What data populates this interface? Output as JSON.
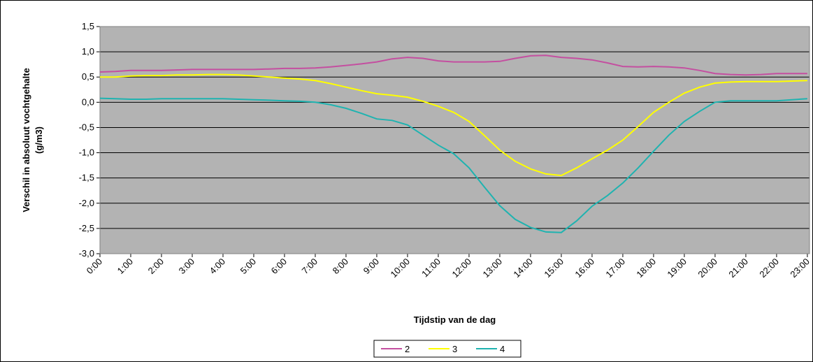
{
  "chart_data": {
    "type": "line",
    "ylabel": [
      "Verschil in absoluut vochtgehalte",
      "(g/m3)"
    ],
    "xlabel": "Tijdstip van de dag",
    "x": [
      0,
      0.5,
      1,
      1.5,
      2,
      2.5,
      3,
      3.5,
      4,
      4.5,
      5,
      5.5,
      6,
      6.5,
      7,
      7.5,
      8,
      8.5,
      9,
      9.5,
      10,
      10.5,
      11,
      11.5,
      12,
      12.5,
      13,
      13.5,
      14,
      14.5,
      15,
      15.5,
      16,
      16.5,
      17,
      17.5,
      18,
      18.5,
      19,
      19.5,
      20,
      20.5,
      21,
      21.5,
      22,
      22.5,
      23
    ],
    "series": [
      {
        "name": "2",
        "color": "#c44fa0",
        "values": [
          0.6,
          0.61,
          0.63,
          0.63,
          0.63,
          0.64,
          0.65,
          0.65,
          0.65,
          0.65,
          0.65,
          0.66,
          0.67,
          0.67,
          0.68,
          0.7,
          0.73,
          0.76,
          0.8,
          0.86,
          0.89,
          0.87,
          0.82,
          0.8,
          0.8,
          0.8,
          0.81,
          0.87,
          0.92,
          0.93,
          0.89,
          0.87,
          0.84,
          0.78,
          0.71,
          0.7,
          0.71,
          0.7,
          0.68,
          0.63,
          0.57,
          0.55,
          0.54,
          0.55,
          0.57,
          0.57,
          0.57
        ]
      },
      {
        "name": "3",
        "color": "#ffff00",
        "values": [
          0.5,
          0.5,
          0.52,
          0.53,
          0.53,
          0.54,
          0.54,
          0.55,
          0.55,
          0.54,
          0.52,
          0.5,
          0.48,
          0.46,
          0.43,
          0.37,
          0.3,
          0.23,
          0.17,
          0.14,
          0.1,
          0.02,
          -0.08,
          -0.2,
          -0.38,
          -0.66,
          -0.95,
          -1.17,
          -1.32,
          -1.42,
          -1.45,
          -1.3,
          -1.12,
          -0.95,
          -0.75,
          -0.48,
          -0.2,
          0.0,
          0.18,
          0.3,
          0.38,
          0.4,
          0.41,
          0.41,
          0.41,
          0.42,
          0.43
        ]
      },
      {
        "name": "4",
        "color": "#1fb3b0",
        "values": [
          0.08,
          0.07,
          0.06,
          0.06,
          0.07,
          0.07,
          0.07,
          0.07,
          0.07,
          0.06,
          0.05,
          0.04,
          0.03,
          0.02,
          0.0,
          -0.05,
          -0.12,
          -0.22,
          -0.33,
          -0.36,
          -0.45,
          -0.65,
          -0.85,
          -1.02,
          -1.3,
          -1.68,
          -2.05,
          -2.32,
          -2.48,
          -2.57,
          -2.58,
          -2.35,
          -2.06,
          -1.85,
          -1.6,
          -1.3,
          -0.97,
          -0.65,
          -0.38,
          -0.18,
          0.0,
          0.03,
          0.03,
          0.03,
          0.03,
          0.05,
          0.07
        ]
      }
    ],
    "xlim": [
      0,
      23.07
    ],
    "xticks": [
      {
        "value": 0,
        "label": "0:00"
      },
      {
        "value": 1,
        "label": "1:00"
      },
      {
        "value": 2,
        "label": "2:00"
      },
      {
        "value": 3,
        "label": "3:00"
      },
      {
        "value": 4,
        "label": "4:00"
      },
      {
        "value": 5,
        "label": "5:00"
      },
      {
        "value": 6,
        "label": "6:00"
      },
      {
        "value": 7,
        "label": "7:00"
      },
      {
        "value": 8,
        "label": "8:00"
      },
      {
        "value": 9,
        "label": "9:00"
      },
      {
        "value": 10,
        "label": "10:00"
      },
      {
        "value": 11,
        "label": "11:00"
      },
      {
        "value": 12,
        "label": "12:00"
      },
      {
        "value": 13,
        "label": "13:00"
      },
      {
        "value": 14,
        "label": "14:00"
      },
      {
        "value": 15,
        "label": "15:00"
      },
      {
        "value": 16,
        "label": "16:00"
      },
      {
        "value": 17,
        "label": "17:00"
      },
      {
        "value": 18,
        "label": "18:00"
      },
      {
        "value": 19,
        "label": "19:00"
      },
      {
        "value": 20,
        "label": "20:00"
      },
      {
        "value": 21,
        "label": "21:00"
      },
      {
        "value": 22,
        "label": "22:00"
      },
      {
        "value": 23,
        "label": "23:00"
      }
    ],
    "ylim": [
      -3,
      1.5
    ],
    "yticks": [
      {
        "value": -3,
        "label": "-3,0"
      },
      {
        "value": -2.5,
        "label": "-2,5"
      },
      {
        "value": -2,
        "label": "-2,0"
      },
      {
        "value": -1.5,
        "label": "-1,5"
      },
      {
        "value": -1,
        "label": "-1,0"
      },
      {
        "value": -0.5,
        "label": "-0,5"
      },
      {
        "value": 0,
        "label": "0,0"
      },
      {
        "value": 0.5,
        "label": "0,5"
      },
      {
        "value": 1,
        "label": "1,0"
      },
      {
        "value": 1.5,
        "label": "1,5"
      }
    ],
    "grid": true,
    "legend": "bottom",
    "plot_background": "#b3b3b3"
  }
}
